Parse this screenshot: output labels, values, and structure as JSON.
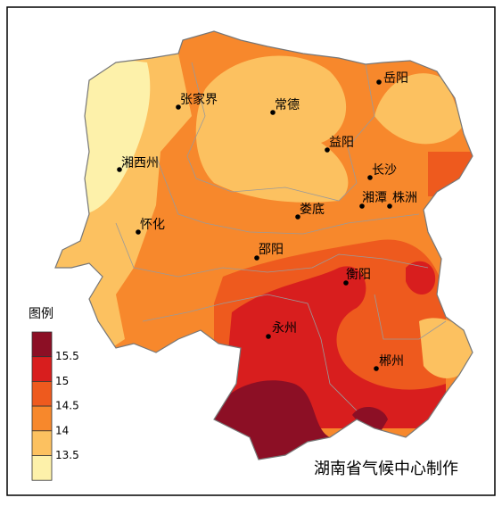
{
  "legend": {
    "title": "图例",
    "labels": [
      15.5,
      15,
      14.5,
      14,
      13.5
    ],
    "colors": [
      "#8c0f25",
      "#d81e1e",
      "#ee5a1e",
      "#f7882c",
      "#fcc160",
      "#fdf1aa"
    ]
  },
  "cities": [
    "张家界",
    "常德",
    "岳阳",
    "益阳",
    "湘西州",
    "长沙",
    "湘潭",
    "株洲",
    "娄底",
    "怀化",
    "邵阳",
    "衡阳",
    "永州",
    "郴州"
  ],
  "credit": "湖南省气候中心制作"
}
